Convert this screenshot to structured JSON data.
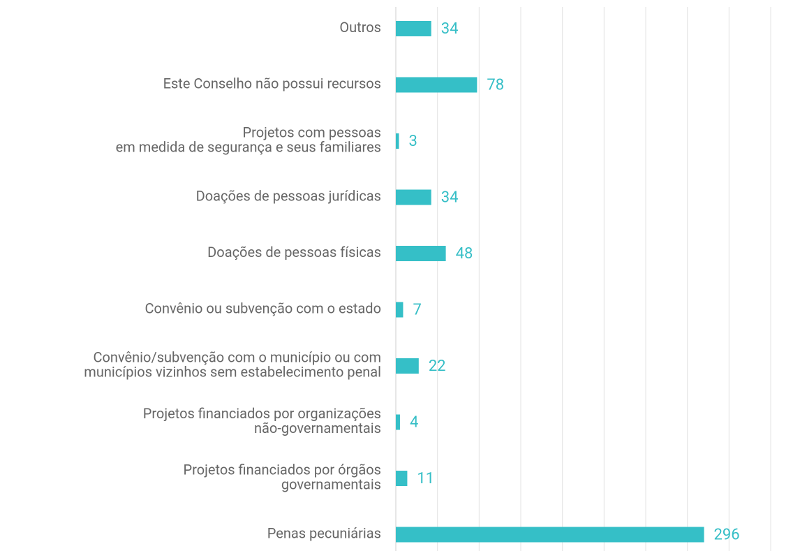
{
  "chart_data": {
    "type": "barh",
    "categories": [
      [
        "Outros"
      ],
      [
        "Este Conselho não possui recursos"
      ],
      [
        "Projetos com pessoas",
        "em medida de segurança e seus familiares"
      ],
      [
        "Doações de pessoas jurídicas"
      ],
      [
        "Doações de pessoas físicas"
      ],
      [
        "Convênio ou subvenção com o estado"
      ],
      [
        "Convênio/subvenção com o município ou com",
        "municípios vizinhos sem estabelecimento penal"
      ],
      [
        "Projetos financiados por organizações",
        "não-governamentais"
      ],
      [
        "Projetos financiados por órgãos",
        "governamentais"
      ],
      [
        "Penas pecuniárias"
      ]
    ],
    "values": [
      34,
      78,
      3,
      34,
      48,
      7,
      22,
      4,
      11,
      296
    ],
    "color": "#35bfc7",
    "xlim": [
      0,
      360
    ],
    "xticks": [
      0,
      40,
      80,
      120,
      160,
      200,
      240,
      280,
      320,
      360
    ],
    "grid": true
  }
}
